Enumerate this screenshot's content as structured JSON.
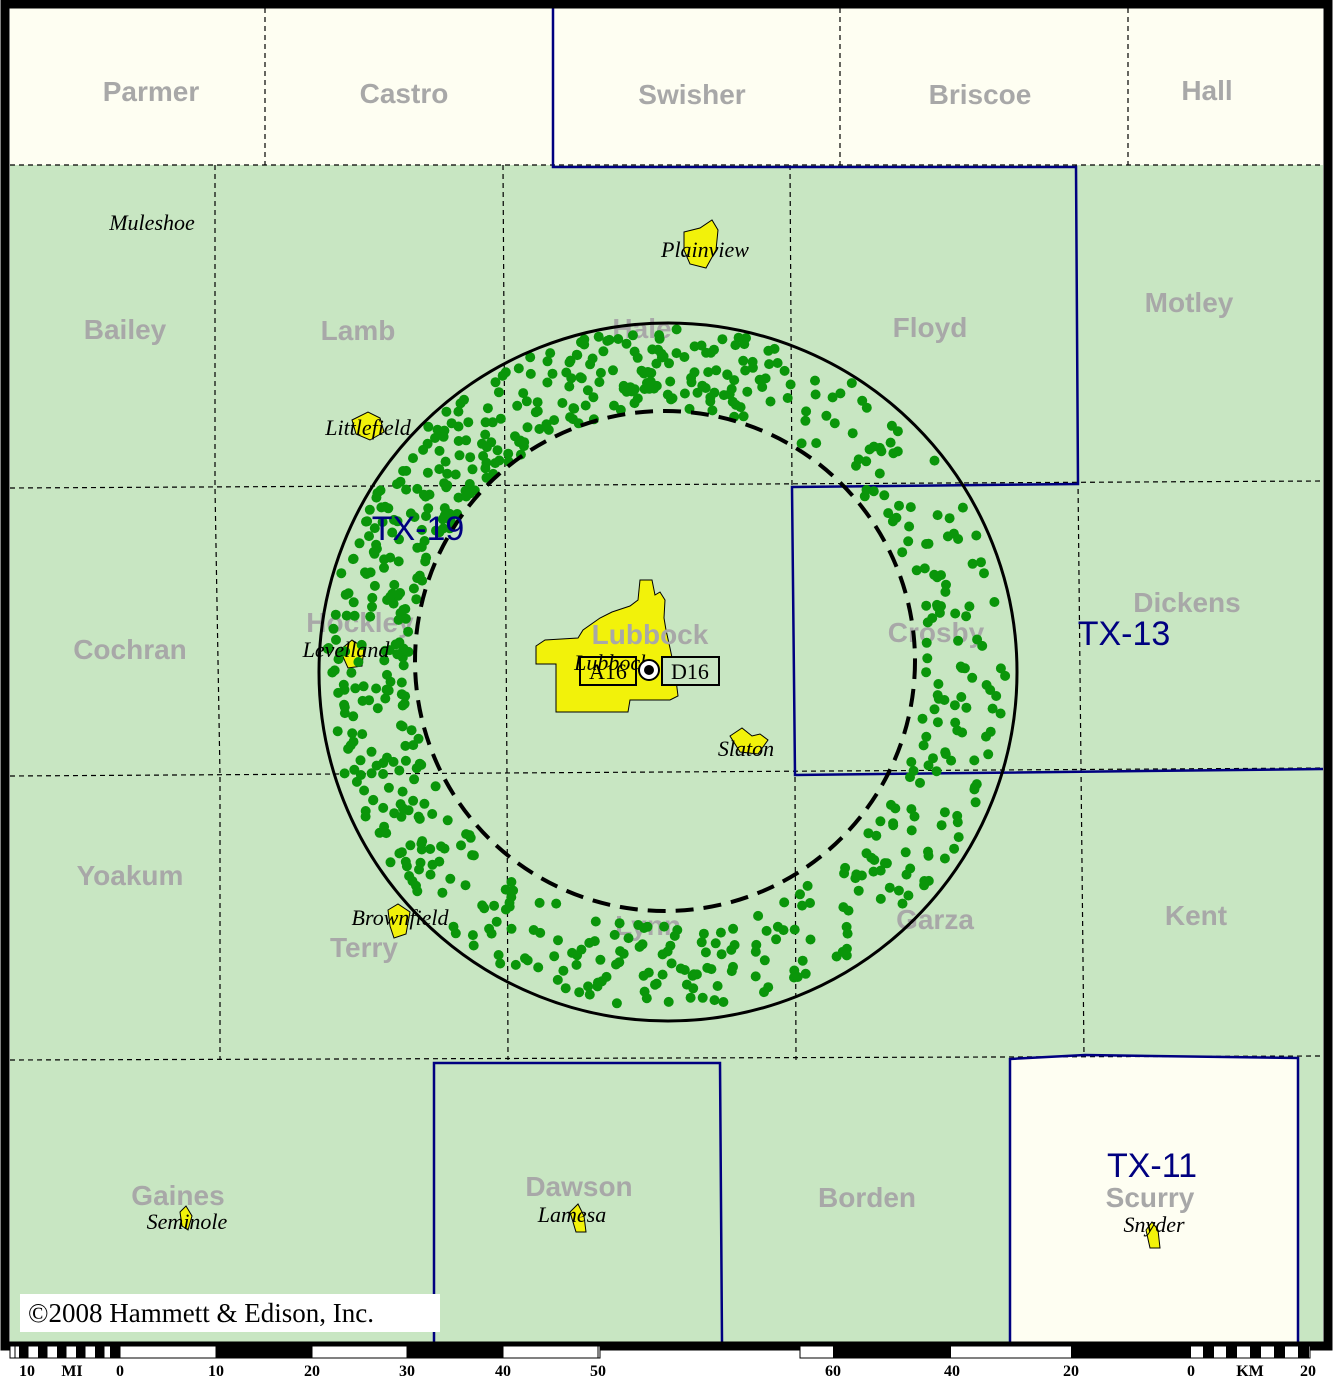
{
  "colors": {
    "coverage_fill": "#c8e6c2",
    "outside_fill": "#fefef2",
    "district_border": "#000080",
    "county_border": "#000000",
    "city_fill": "#f2f20a",
    "dot": "#0a960a",
    "county_label": "#a8a8a8"
  },
  "counties": [
    {
      "name": "Parmer"
    },
    {
      "name": "Castro"
    },
    {
      "name": "Swisher"
    },
    {
      "name": "Briscoe"
    },
    {
      "name": "Hall"
    },
    {
      "name": "Bailey"
    },
    {
      "name": "Lamb"
    },
    {
      "name": "Hale"
    },
    {
      "name": "Floyd"
    },
    {
      "name": "Motley"
    },
    {
      "name": "Cochran"
    },
    {
      "name": "Hockley"
    },
    {
      "name": "Lubbock"
    },
    {
      "name": "Crosby"
    },
    {
      "name": "Dickens"
    },
    {
      "name": "Yoakum"
    },
    {
      "name": "Terry"
    },
    {
      "name": "Lynn"
    },
    {
      "name": "Garza"
    },
    {
      "name": "Kent"
    },
    {
      "name": "Gaines"
    },
    {
      "name": "Dawson"
    },
    {
      "name": "Borden"
    },
    {
      "name": "Scurry"
    }
  ],
  "cities": [
    {
      "name": "Muleshoe"
    },
    {
      "name": "Plainview"
    },
    {
      "name": "Littlefield"
    },
    {
      "name": "Levelland"
    },
    {
      "name": "Lubbock"
    },
    {
      "name": "Slaton"
    },
    {
      "name": "Brownfield"
    },
    {
      "name": "Seminole"
    },
    {
      "name": "Lamesa"
    },
    {
      "name": "Snyder"
    }
  ],
  "districts": [
    {
      "name": "TX-19"
    },
    {
      "name": "TX-13"
    },
    {
      "name": "TX-11"
    }
  ],
  "stations": [
    {
      "label": "A16"
    },
    {
      "label": "D16"
    }
  ],
  "copyright": "©2008 Hammett & Edison, Inc.",
  "scale_bar": {
    "mi_unit": "MI",
    "km_unit": "KM",
    "mi_ticks": [
      "10",
      "0",
      "10",
      "20",
      "30",
      "40",
      "50"
    ],
    "km_ticks": [
      "60",
      "40",
      "20",
      "0",
      "20"
    ]
  }
}
